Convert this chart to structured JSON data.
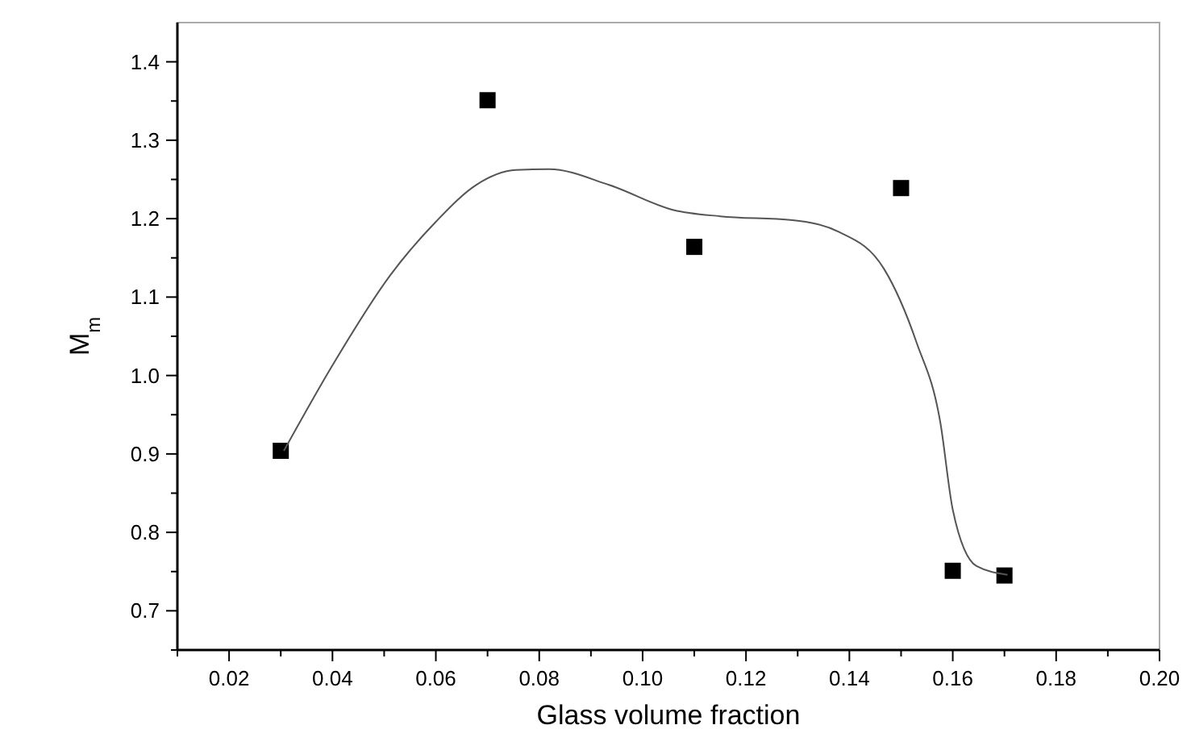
{
  "chart_data": {
    "type": "scatter",
    "xlabel": "Glass volume fraction",
    "ylabel": "M$_{m}$",
    "xlim": [
      0.01,
      0.2
    ],
    "ylim": [
      0.65,
      1.45
    ],
    "xticks": [
      {
        "value": 0.01,
        "label": null
      },
      0.02,
      {
        "value": 0.03,
        "label": null
      },
      0.04,
      {
        "value": 0.05,
        "label": null
      },
      0.06,
      {
        "value": 0.07,
        "label": null
      },
      0.08,
      {
        "value": 0.09,
        "label": null
      },
      {
        "value": 0.1,
        "label": "0.10"
      },
      {
        "value": 0.11,
        "label": null
      },
      0.12,
      {
        "value": 0.13,
        "label": null
      },
      0.14,
      {
        "value": 0.15,
        "label": null
      },
      0.16,
      {
        "value": 0.17,
        "label": null
      },
      0.18,
      {
        "value": 0.19,
        "label": null
      },
      {
        "value": 0.2,
        "label": "0.20"
      }
    ],
    "yticks": [
      {
        "value": 0.65,
        "label": null
      },
      0.7,
      {
        "value": 0.75,
        "label": null
      },
      0.8,
      {
        "value": 0.85,
        "label": null
      },
      0.9,
      {
        "value": 0.95,
        "label": null
      },
      {
        "value": 1.0,
        "label": "1.0"
      },
      {
        "value": 1.05,
        "label": null
      },
      1.1,
      {
        "value": 1.15,
        "label": null
      },
      1.2,
      {
        "value": 1.25,
        "label": null
      },
      1.3,
      {
        "value": 1.35,
        "label": null
      },
      1.4
    ],
    "grid": false,
    "series": [
      {
        "color": "#000000",
        "marker": "square",
        "x": [
          0.03,
          0.07,
          0.11,
          0.15,
          0.16,
          0.17
        ],
        "values": [
          0.904,
          1.351,
          1.164,
          1.239,
          0.751,
          0.745
        ]
      },
      {
        "type": "line",
        "color": "#555555",
        "marker": "none",
        "line_style": "solid",
        "x": [
          0.0306,
          0.04,
          0.0512,
          0.06,
          0.0678,
          0.0755,
          0.0819,
          0.0935,
          0.106,
          0.115,
          0.129,
          0.138,
          0.1467,
          0.153,
          0.1576,
          0.16,
          0.1646,
          0.1706
        ],
        "values": [
          0.904,
          1.013,
          1.128,
          1.196,
          1.243,
          1.262,
          1.263,
          1.243,
          1.211,
          1.203,
          1.198,
          1.183,
          1.136,
          1.042,
          0.94,
          0.829,
          0.757,
          0.746
        ]
      }
    ]
  }
}
